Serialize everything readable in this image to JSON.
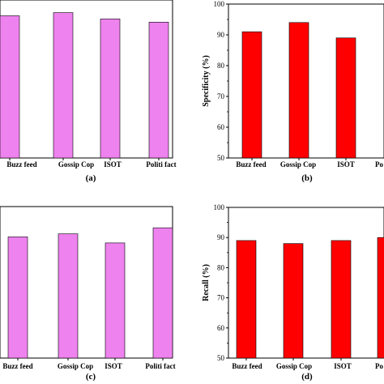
{
  "chart_data": [
    {
      "type": "bar",
      "panel_label": "(a)",
      "categories": [
        "Buzz feed",
        "Gossip Cop",
        "ISOT",
        "Politi fact"
      ],
      "values": [
        95,
        96,
        94,
        93
      ],
      "ylabel": "",
      "ylim": [
        50,
        100
      ],
      "yticks": [],
      "bar_color": "#ee82ee"
    },
    {
      "type": "bar",
      "panel_label": "(b)",
      "categories": [
        "Buzz feed",
        "Gossip Cop",
        "ISOT",
        "Po"
      ],
      "values": [
        91,
        94,
        89,
        null
      ],
      "ylabel": "Specificity (%)",
      "ylim": [
        50,
        100
      ],
      "yticks": [
        "50",
        "60",
        "70",
        "80",
        "90",
        "100"
      ],
      "bar_color": "#ff0000"
    },
    {
      "type": "bar",
      "panel_label": "(c)",
      "categories": [
        "Buzz feed",
        "Gossip Cop",
        "ISOT",
        "Politi fact"
      ],
      "values": [
        90,
        91,
        88,
        93
      ],
      "ylabel": "",
      "ylim": [
        50,
        100
      ],
      "yticks": [],
      "bar_color": "#ee82ee"
    },
    {
      "type": "bar",
      "panel_label": "(d)",
      "categories": [
        "Buzz feed",
        "Gossip Cop",
        "ISOT",
        "Po"
      ],
      "values": [
        89,
        88,
        89,
        90
      ],
      "ylabel": "Recall (%)",
      "ylim": [
        50,
        100
      ],
      "yticks": [
        "50",
        "60",
        "70",
        "80",
        "90",
        "100"
      ],
      "bar_color": "#ff0000"
    }
  ]
}
